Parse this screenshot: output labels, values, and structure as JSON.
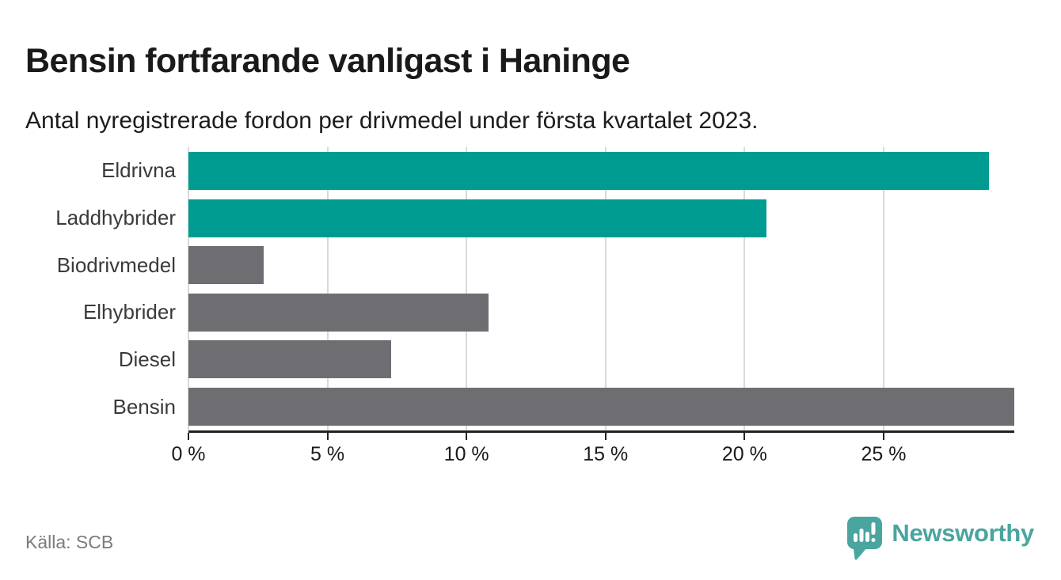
{
  "chart_data": {
    "type": "bar",
    "orientation": "horizontal",
    "title": "Bensin fortfarande vanligast i Haninge",
    "subtitle": "Antal nyregistrerade fordon per drivmedel under första kvartalet 2023.",
    "categories": [
      "Eldrivna",
      "Laddhybrider",
      "Biodrivmedel",
      "Elhybrider",
      "Diesel",
      "Bensin"
    ],
    "values": [
      28.8,
      20.8,
      2.7,
      10.8,
      7.3,
      29.7
    ],
    "unit": "%",
    "bar_colors": [
      "#009c92",
      "#009c92",
      "#6d6d72",
      "#6d6d72",
      "#6d6d72",
      "#6d6d72"
    ],
    "xlim": [
      0,
      29.7
    ],
    "x_ticks": {
      "values": [
        0,
        5,
        10,
        15,
        20,
        25
      ],
      "labels": [
        "0 %",
        "5 %",
        "10 %",
        "15 %",
        "20 %",
        "25 %"
      ]
    },
    "grid": "vertical-only",
    "legend": "none"
  },
  "colors": {
    "accent_teal": "#009c92",
    "neutral_gray": "#6d6d72",
    "gridline": "#d9d9d9",
    "axis": "#222222",
    "text_dark": "#1a1a1a",
    "text_muted": "#7b7b7b",
    "logo_teal": "#4aa59f"
  },
  "footer": {
    "source": "Källa: SCB",
    "logo_text": "Newsworthy"
  }
}
